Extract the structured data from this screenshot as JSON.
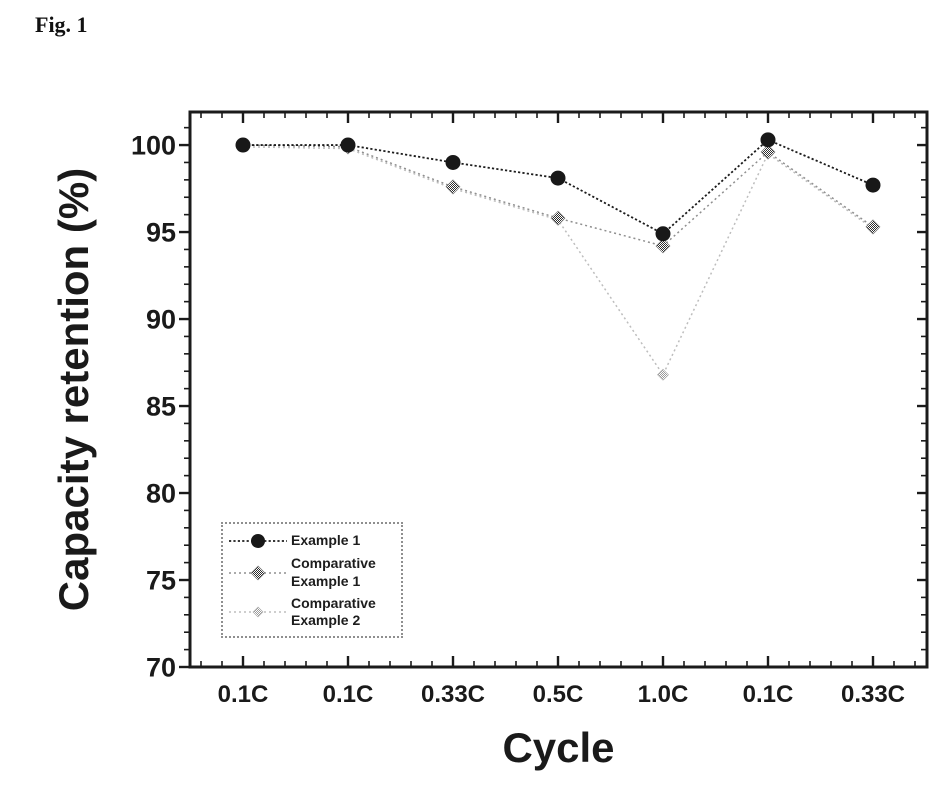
{
  "figure_label": "Fig. 1",
  "colors": {
    "background": "#ffffff",
    "axis": "#1b1b1b",
    "text": "#1a1a1a",
    "example1": "#1c1c1c",
    "comparative1": "#8f8f8f",
    "comparative2": "#bdbdbd"
  },
  "chart_data": {
    "type": "line",
    "title": "",
    "xlabel": "Cycle",
    "ylabel": "Capacity retention (%)",
    "categories": [
      "0.1C",
      "0.1C",
      "0.33C",
      "0.5C",
      "1.0C",
      "0.1C",
      "0.33C"
    ],
    "yticks": [
      100,
      95,
      90,
      85,
      80,
      75,
      70
    ],
    "ylim": [
      70,
      101.9
    ],
    "grid": false,
    "legend_position": "inside bottom-left",
    "series": [
      {
        "name": "Example 1",
        "legend_label": "Example 1",
        "marker": "circle",
        "line_style": "dotted",
        "color": "#1c1c1c",
        "values": [
          100.0,
          100.0,
          99.0,
          98.1,
          94.9,
          100.3,
          97.7
        ]
      },
      {
        "name": "Comparative Example 1",
        "legend_label": "Comparative\nExample 1",
        "marker": "diamond",
        "line_style": "dotted",
        "color": "#8f8f8f",
        "values": [
          100.0,
          99.9,
          97.6,
          95.8,
          94.2,
          99.6,
          95.3
        ]
      },
      {
        "name": "Comparative Example 2",
        "legend_label": "Comparative\nExample 2",
        "marker": "diamond-small",
        "line_style": "dotted",
        "color": "#bdbdbd",
        "values": [
          99.9,
          99.8,
          97.5,
          95.7,
          86.8,
          99.5,
          95.2
        ]
      }
    ]
  }
}
